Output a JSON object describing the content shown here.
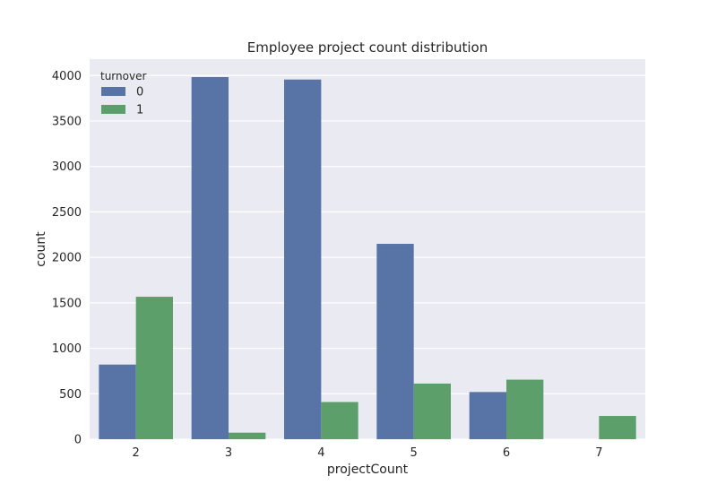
{
  "chart_data": {
    "type": "bar",
    "title": "Employee project count distribution",
    "xlabel": "projectCount",
    "ylabel": "count",
    "categories": [
      "2",
      "3",
      "4",
      "5",
      "6",
      "7"
    ],
    "series": [
      {
        "name": "0",
        "values": [
          821,
          3983,
          3956,
          2149,
          519,
          0
        ],
        "color": "#5874a6"
      },
      {
        "name": "1",
        "values": [
          1567,
          72,
          409,
          612,
          655,
          256
        ],
        "color": "#5c9f6b"
      }
    ],
    "ylim": [
      0,
      4180
    ],
    "yticks": [
      0,
      500,
      1000,
      1500,
      2000,
      2500,
      3000,
      3500,
      4000
    ],
    "legend": {
      "title": "turnover",
      "position": "top-left"
    },
    "grid": true,
    "background": "#eaeaf2"
  }
}
